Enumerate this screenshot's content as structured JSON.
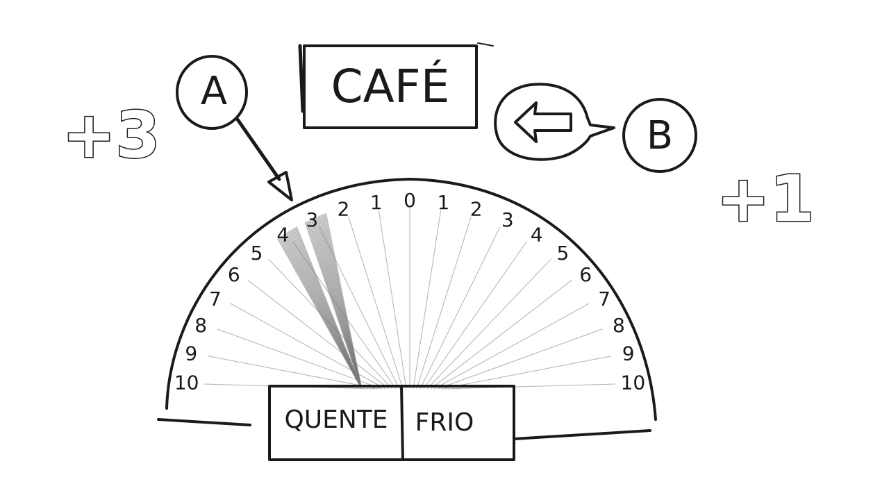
{
  "title": "CAFÉ",
  "player_a": {
    "label": "A",
    "score": "+3"
  },
  "player_b": {
    "label": "B",
    "score": "+1"
  },
  "dial": {
    "left_numbers": [
      "10",
      "9",
      "8",
      "7",
      "6",
      "5",
      "4",
      "3",
      "2",
      "1"
    ],
    "center_number": "0",
    "right_numbers": [
      "1",
      "2",
      "3",
      "4",
      "5",
      "6",
      "7",
      "8",
      "9",
      "10"
    ],
    "shaded_value": "4"
  },
  "buttons": {
    "hot": "QUENTE",
    "cold": "FRIO"
  },
  "icons": {
    "arrow_b": "left-arrow-icon",
    "pointer_a": "down-arrow-pointer-icon"
  },
  "colors": {
    "ink": "#1a1a1a",
    "guide_lines": "#b0b0b0",
    "shading": "#7a7a7a"
  }
}
